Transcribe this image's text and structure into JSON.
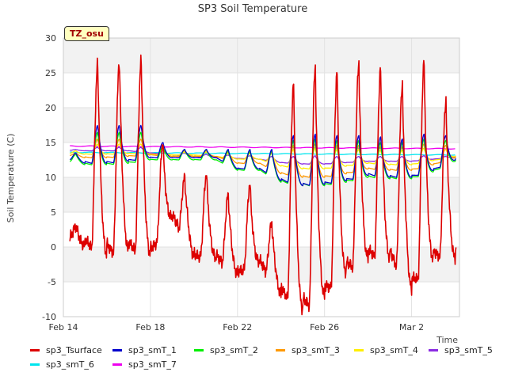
{
  "chart_data": {
    "type": "line",
    "title": "SP3 Soil Temperature",
    "xlabel": "Time",
    "ylabel": "Soil Temperature (C)",
    "annotation": "TZ_osu",
    "ylim": [
      -10,
      30
    ],
    "xlim_days": [
      0,
      18.2
    ],
    "x_ticks": [
      {
        "label": "Feb 14",
        "day": 0
      },
      {
        "label": "Feb 18",
        "day": 4
      },
      {
        "label": "Feb 22",
        "day": 8
      },
      {
        "label": "Feb 26",
        "day": 12
      },
      {
        "label": "Mar 2",
        "day": 16
      }
    ],
    "y_ticks": [
      -10,
      -5,
      0,
      5,
      10,
      15,
      20,
      25,
      30
    ],
    "grid": true,
    "legend_position": "bottom",
    "series": [
      {
        "name": "sp3_Tsurface",
        "color": "#dd0000",
        "min": [
          2.0,
          0.0,
          -1.0,
          -0.5,
          -1.0,
          4.5,
          -1.5,
          -1.5,
          -4.0,
          -2.0,
          -7.0,
          -9.0,
          -7.0,
          -3.5,
          -1.5,
          -1.5,
          -6.0,
          -1.5,
          -1.5
        ],
        "max": [
          3.0,
          26.5,
          27.0,
          27.0,
          15.0,
          10.0,
          10.5,
          7.5,
          9.0,
          3.5,
          23.5,
          26.0,
          25.0,
          26.5,
          25.5,
          23.5,
          26.5,
          21.0,
          21.0
        ]
      },
      {
        "name": "sp3_smT_1",
        "color": "#0000cc",
        "min": [
          12.8,
          12.0,
          12.0,
          12.3,
          12.8,
          12.8,
          12.8,
          12.8,
          11.2,
          11.2,
          9.5,
          8.8,
          9.0,
          9.5,
          10.3,
          10.0,
          10.0,
          11.0,
          12.5
        ],
        "max": [
          13.5,
          17.5,
          17.5,
          17.5,
          15.0,
          14.0,
          14.0,
          14.0,
          14.0,
          14.0,
          16.0,
          16.2,
          16.0,
          16.0,
          15.8,
          15.5,
          16.2,
          16.0,
          16.0
        ]
      },
      {
        "name": "sp3_smT_2",
        "color": "#00ee00",
        "min": [
          12.5,
          11.8,
          11.8,
          12.0,
          12.5,
          12.5,
          12.5,
          12.5,
          11.0,
          11.0,
          9.3,
          8.8,
          8.8,
          9.3,
          10.0,
          9.8,
          9.8,
          10.8,
          12.3
        ],
        "max": [
          13.3,
          16.5,
          16.5,
          16.5,
          14.5,
          14.0,
          14.0,
          13.8,
          13.8,
          13.8,
          15.3,
          15.5,
          15.3,
          15.3,
          15.0,
          15.0,
          15.5,
          15.3,
          15.3
        ]
      },
      {
        "name": "sp3_smT_3",
        "color": "#ff9900",
        "min": [
          13.3,
          12.8,
          12.8,
          13.0,
          13.2,
          13.0,
          13.0,
          13.0,
          12.0,
          12.0,
          10.5,
          10.0,
          10.0,
          10.5,
          11.2,
          11.0,
          11.0,
          11.8,
          12.8
        ],
        "max": [
          13.5,
          15.5,
          15.5,
          15.5,
          14.3,
          13.8,
          13.8,
          13.6,
          13.6,
          13.6,
          14.6,
          14.8,
          14.6,
          14.6,
          14.4,
          14.4,
          14.8,
          14.6,
          14.6
        ]
      },
      {
        "name": "sp3_smT_4",
        "color": "#ffee00",
        "min": [
          13.5,
          13.3,
          13.3,
          13.4,
          13.3,
          13.2,
          13.2,
          13.0,
          12.6,
          12.6,
          11.6,
          11.2,
          11.2,
          11.6,
          12.0,
          11.8,
          11.8,
          12.4,
          13.0
        ],
        "max": [
          13.8,
          14.8,
          14.8,
          14.8,
          14.0,
          13.6,
          13.6,
          13.4,
          13.4,
          13.4,
          14.0,
          14.2,
          14.0,
          14.0,
          13.9,
          13.9,
          14.2,
          14.0,
          14.0
        ]
      },
      {
        "name": "sp3_smT_5",
        "color": "#8a2be2",
        "min": [
          13.9,
          13.8,
          13.8,
          13.8,
          13.5,
          13.2,
          13.0,
          12.9,
          12.7,
          12.6,
          12.1,
          11.9,
          11.9,
          12.1,
          12.3,
          12.3,
          12.3,
          12.6,
          12.9
        ],
        "max": [
          14.0,
          14.3,
          14.3,
          14.3,
          13.8,
          13.5,
          13.3,
          13.2,
          13.1,
          13.0,
          13.0,
          13.1,
          13.0,
          13.0,
          13.0,
          13.0,
          13.1,
          13.0,
          13.1
        ]
      },
      {
        "name": "sp3_smT_6",
        "color": "#00e5ee",
        "start": 13.6,
        "end": 13.2
      },
      {
        "name": "sp3_smT_7",
        "color": "#ee00ee",
        "start": 14.5,
        "end": 14.1
      }
    ]
  }
}
